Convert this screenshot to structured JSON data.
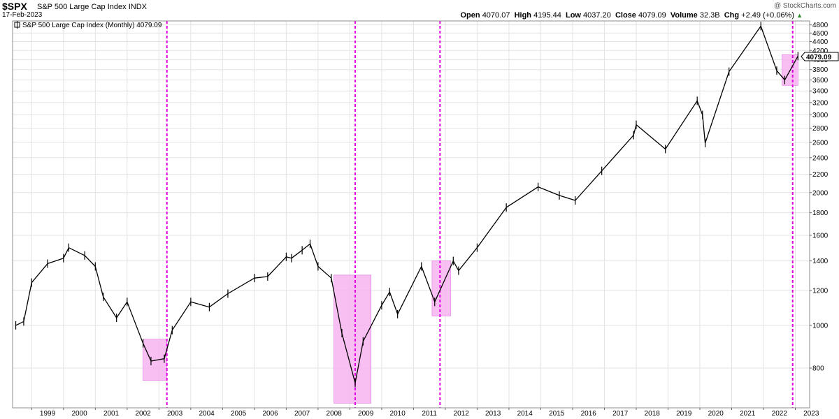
{
  "header": {
    "symbol": "$SPX",
    "name": "S&P 500 Large Cap Index",
    "exchange": "INDX",
    "date": "17-Feb-2023",
    "credit": "@ StockCharts.com",
    "open_label": "Open",
    "open": "4070.07",
    "high_label": "High",
    "high": "4195.44",
    "low_label": "Low",
    "low": "4037.20",
    "close_label": "Close",
    "close": "4079.09",
    "volume_label": "Volume",
    "volume": "32.3B",
    "chg_label": "Chg",
    "chg": "+2.49 (+0.06%)",
    "chg_arrow": "▲"
  },
  "chart_data": {
    "type": "line",
    "legend_label": "S&P 500 Large Cap Index (Monthly) 4079.09",
    "legend_position": "top-left",
    "last_value_label": "4079.09",
    "y_scale": "log",
    "ylim": [
      650,
      4900
    ],
    "y_ticks": [
      800,
      1000,
      1200,
      1400,
      1600,
      1800,
      2000,
      2200,
      2400,
      2600,
      2800,
      3000,
      3200,
      3400,
      3600,
      3800,
      4000,
      4200,
      4400,
      4600,
      4800
    ],
    "x_ticks": [
      "1999",
      "2000",
      "2001",
      "2002",
      "2003",
      "2004",
      "2005",
      "2006",
      "2007",
      "2008",
      "2009",
      "2010",
      "2011",
      "2012",
      "2013",
      "2014",
      "2015",
      "2016",
      "2017",
      "2018",
      "2019",
      "2020",
      "2021",
      "2022",
      "2023"
    ],
    "grid": true,
    "x": [
      "1998-07",
      "1998-10",
      "1999-01",
      "1999-07",
      "2000-01",
      "2000-03",
      "2000-09",
      "2001-01",
      "2001-04",
      "2001-09",
      "2002-01",
      "2002-07",
      "2002-10",
      "2003-03",
      "2003-06",
      "2004-01",
      "2004-08",
      "2005-03",
      "2006-01",
      "2006-06",
      "2007-01",
      "2007-03",
      "2007-07",
      "2007-10",
      "2008-01",
      "2008-06",
      "2008-10",
      "2009-03",
      "2009-06",
      "2010-01",
      "2010-04",
      "2010-07",
      "2011-04",
      "2011-09",
      "2012-04",
      "2012-06",
      "2013-01",
      "2013-12",
      "2014-12",
      "2015-08",
      "2016-02",
      "2016-12",
      "2017-12",
      "2018-01",
      "2018-12",
      "2019-12",
      "2020-02",
      "2020-03",
      "2020-12",
      "2021-12",
      "2022-06",
      "2022-09",
      "2023-02"
    ],
    "values": [
      1000,
      1020,
      1250,
      1380,
      1420,
      1500,
      1440,
      1360,
      1160,
      1040,
      1130,
      910,
      830,
      840,
      975,
      1130,
      1100,
      1180,
      1280,
      1290,
      1430,
      1420,
      1480,
      1530,
      1360,
      1280,
      960,
      740,
      920,
      1110,
      1190,
      1060,
      1360,
      1130,
      1400,
      1330,
      1500,
      1850,
      2060,
      1970,
      1920,
      2240,
      2700,
      2850,
      2510,
      3230,
      3000,
      2590,
      3760,
      4770,
      3780,
      3600,
      4079
    ],
    "series": [
      {
        "name": "S&P 500 Large Cap Index (Monthly)",
        "color": "#000000"
      }
    ],
    "event_lines": [
      "2003-04",
      "2009-03",
      "2011-11",
      "2022-12"
    ],
    "highlight_boxes": [
      {
        "x0": "2002-07",
        "x1": "2003-04",
        "y0": 750,
        "y1": 930
      },
      {
        "x0": "2008-07",
        "x1": "2009-09",
        "y0": 666,
        "y1": 1300
      },
      {
        "x0": "2011-08",
        "x1": "2012-03",
        "y0": 1050,
        "y1": 1400
      },
      {
        "x0": "2022-08",
        "x1": "2023-02",
        "y0": 3500,
        "y1": 4110
      }
    ],
    "event_color": "#e000e0",
    "highlight_color": "#f7b4f0"
  }
}
